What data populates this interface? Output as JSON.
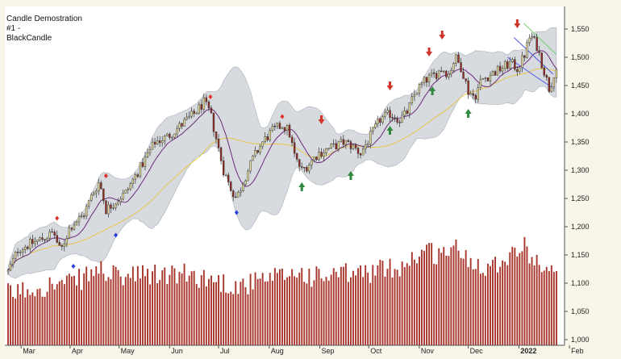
{
  "chart_data": {
    "type": "candlestick",
    "title_lines": [
      "Candle Demostration",
      "#1 -",
      "BlackCandle"
    ],
    "ylim": [
      990,
      1590
    ],
    "y_ticks": [
      1000,
      1050,
      1100,
      1150,
      1200,
      1250,
      1300,
      1350,
      1400,
      1450,
      1500,
      1550
    ],
    "y_tick_labels": [
      "1,000",
      "1,050",
      "1,100",
      "1,150",
      "1,200",
      "1,250",
      "1,300",
      "1,350",
      "1,400",
      "1,450",
      "1,500",
      "1,550"
    ],
    "x_labels": [
      {
        "label": "Mar",
        "day": 8,
        "bold": false
      },
      {
        "label": "Apr",
        "day": 38,
        "bold": false
      },
      {
        "label": "May",
        "day": 68,
        "bold": false
      },
      {
        "label": "Jun",
        "day": 99,
        "bold": false
      },
      {
        "label": "Jul",
        "day": 129,
        "bold": false
      },
      {
        "label": "Aug",
        "day": 160,
        "bold": false
      },
      {
        "label": "Sep",
        "day": 191,
        "bold": false
      },
      {
        "label": "Oct",
        "day": 221,
        "bold": false
      },
      {
        "label": "Nov",
        "day": 252,
        "bold": false
      },
      {
        "label": "Dec",
        "day": 282,
        "bold": false
      },
      {
        "label": "2022",
        "day": 313,
        "bold": true
      },
      {
        "label": "Feb",
        "day": 344,
        "bold": false
      }
    ],
    "price_anchors": [
      [
        0,
        1120
      ],
      [
        6,
        1160
      ],
      [
        14,
        1170
      ],
      [
        22,
        1180
      ],
      [
        28,
        1190
      ],
      [
        32,
        1155
      ],
      [
        38,
        1200
      ],
      [
        46,
        1220
      ],
      [
        52,
        1260
      ],
      [
        56,
        1280
      ],
      [
        60,
        1230
      ],
      [
        64,
        1240
      ],
      [
        72,
        1260
      ],
      [
        80,
        1300
      ],
      [
        90,
        1350
      ],
      [
        98,
        1360
      ],
      [
        106,
        1380
      ],
      [
        114,
        1400
      ],
      [
        120,
        1420
      ],
      [
        124,
        1400
      ],
      [
        128,
        1350
      ],
      [
        132,
        1300
      ],
      [
        136,
        1270
      ],
      [
        140,
        1250
      ],
      [
        144,
        1280
      ],
      [
        150,
        1320
      ],
      [
        156,
        1350
      ],
      [
        162,
        1370
      ],
      [
        168,
        1380
      ],
      [
        172,
        1370
      ],
      [
        176,
        1320
      ],
      [
        180,
        1300
      ],
      [
        184,
        1310
      ],
      [
        190,
        1330
      ],
      [
        198,
        1340
      ],
      [
        206,
        1350
      ],
      [
        212,
        1340
      ],
      [
        216,
        1330
      ],
      [
        222,
        1360
      ],
      [
        228,
        1390
      ],
      [
        234,
        1400
      ],
      [
        240,
        1390
      ],
      [
        244,
        1400
      ],
      [
        250,
        1440
      ],
      [
        256,
        1460
      ],
      [
        262,
        1470
      ],
      [
        266,
        1480
      ],
      [
        270,
        1470
      ],
      [
        274,
        1500
      ],
      [
        278,
        1480
      ],
      [
        282,
        1440
      ],
      [
        286,
        1430
      ],
      [
        290,
        1460
      ],
      [
        296,
        1470
      ],
      [
        302,
        1480
      ],
      [
        308,
        1490
      ],
      [
        312,
        1480
      ],
      [
        316,
        1500
      ],
      [
        320,
        1540
      ],
      [
        324,
        1520
      ],
      [
        328,
        1480
      ],
      [
        330,
        1460
      ],
      [
        332,
        1440
      ],
      [
        334,
        1470
      ],
      [
        336,
        1480
      ]
    ],
    "volume_anchors": [
      [
        0,
        1080
      ],
      [
        20,
        1095
      ],
      [
        40,
        1100
      ],
      [
        56,
        1125
      ],
      [
        66,
        1110
      ],
      [
        90,
        1115
      ],
      [
        110,
        1115
      ],
      [
        120,
        1110
      ],
      [
        140,
        1095
      ],
      [
        160,
        1105
      ],
      [
        176,
        1120
      ],
      [
        190,
        1110
      ],
      [
        206,
        1115
      ],
      [
        222,
        1120
      ],
      [
        240,
        1130
      ],
      [
        256,
        1160
      ],
      [
        264,
        1150
      ],
      [
        272,
        1165
      ],
      [
        284,
        1140
      ],
      [
        296,
        1130
      ],
      [
        306,
        1150
      ],
      [
        316,
        1165
      ],
      [
        324,
        1140
      ],
      [
        336,
        1110
      ]
    ],
    "up_markers": [
      {
        "day": 180,
        "price": 1270
      },
      {
        "day": 210,
        "price": 1290
      },
      {
        "day": 234,
        "price": 1370
      },
      {
        "day": 260,
        "price": 1440
      },
      {
        "day": 282,
        "price": 1400
      }
    ],
    "down_markers": [
      {
        "day": 192,
        "price": 1390
      },
      {
        "day": 234,
        "price": 1450
      },
      {
        "day": 258,
        "price": 1510
      },
      {
        "day": 266,
        "price": 1540
      },
      {
        "day": 312,
        "price": 1560
      }
    ],
    "peak_dots": [
      {
        "day": 30,
        "price": 1215
      },
      {
        "day": 60,
        "price": 1290
      },
      {
        "day": 124,
        "price": 1430
      },
      {
        "day": 168,
        "price": 1395
      }
    ],
    "trough_dots": [
      {
        "day": 40,
        "price": 1130
      },
      {
        "day": 66,
        "price": 1185
      },
      {
        "day": 140,
        "price": 1225
      }
    ]
  },
  "colors": {
    "plot_bg": "#ffffff",
    "outer_bg": "#f7f6e9",
    "band_fill": "#c9ced4",
    "up_candle": "#f2e79b",
    "down_candle": "#9b2a1f",
    "wick": "#333333",
    "volume": "#a8352b",
    "ma_fast": "#6b2d7a",
    "ma_slow": "#e6c64a",
    "up_arrow": "#2f8a3d",
    "down_arrow": "#d2342a",
    "peak_dot": "#e0302a",
    "trough_dot": "#2a3fd8",
    "trend_green": "#6fd26f",
    "trend_blue": "#4d57e6"
  }
}
